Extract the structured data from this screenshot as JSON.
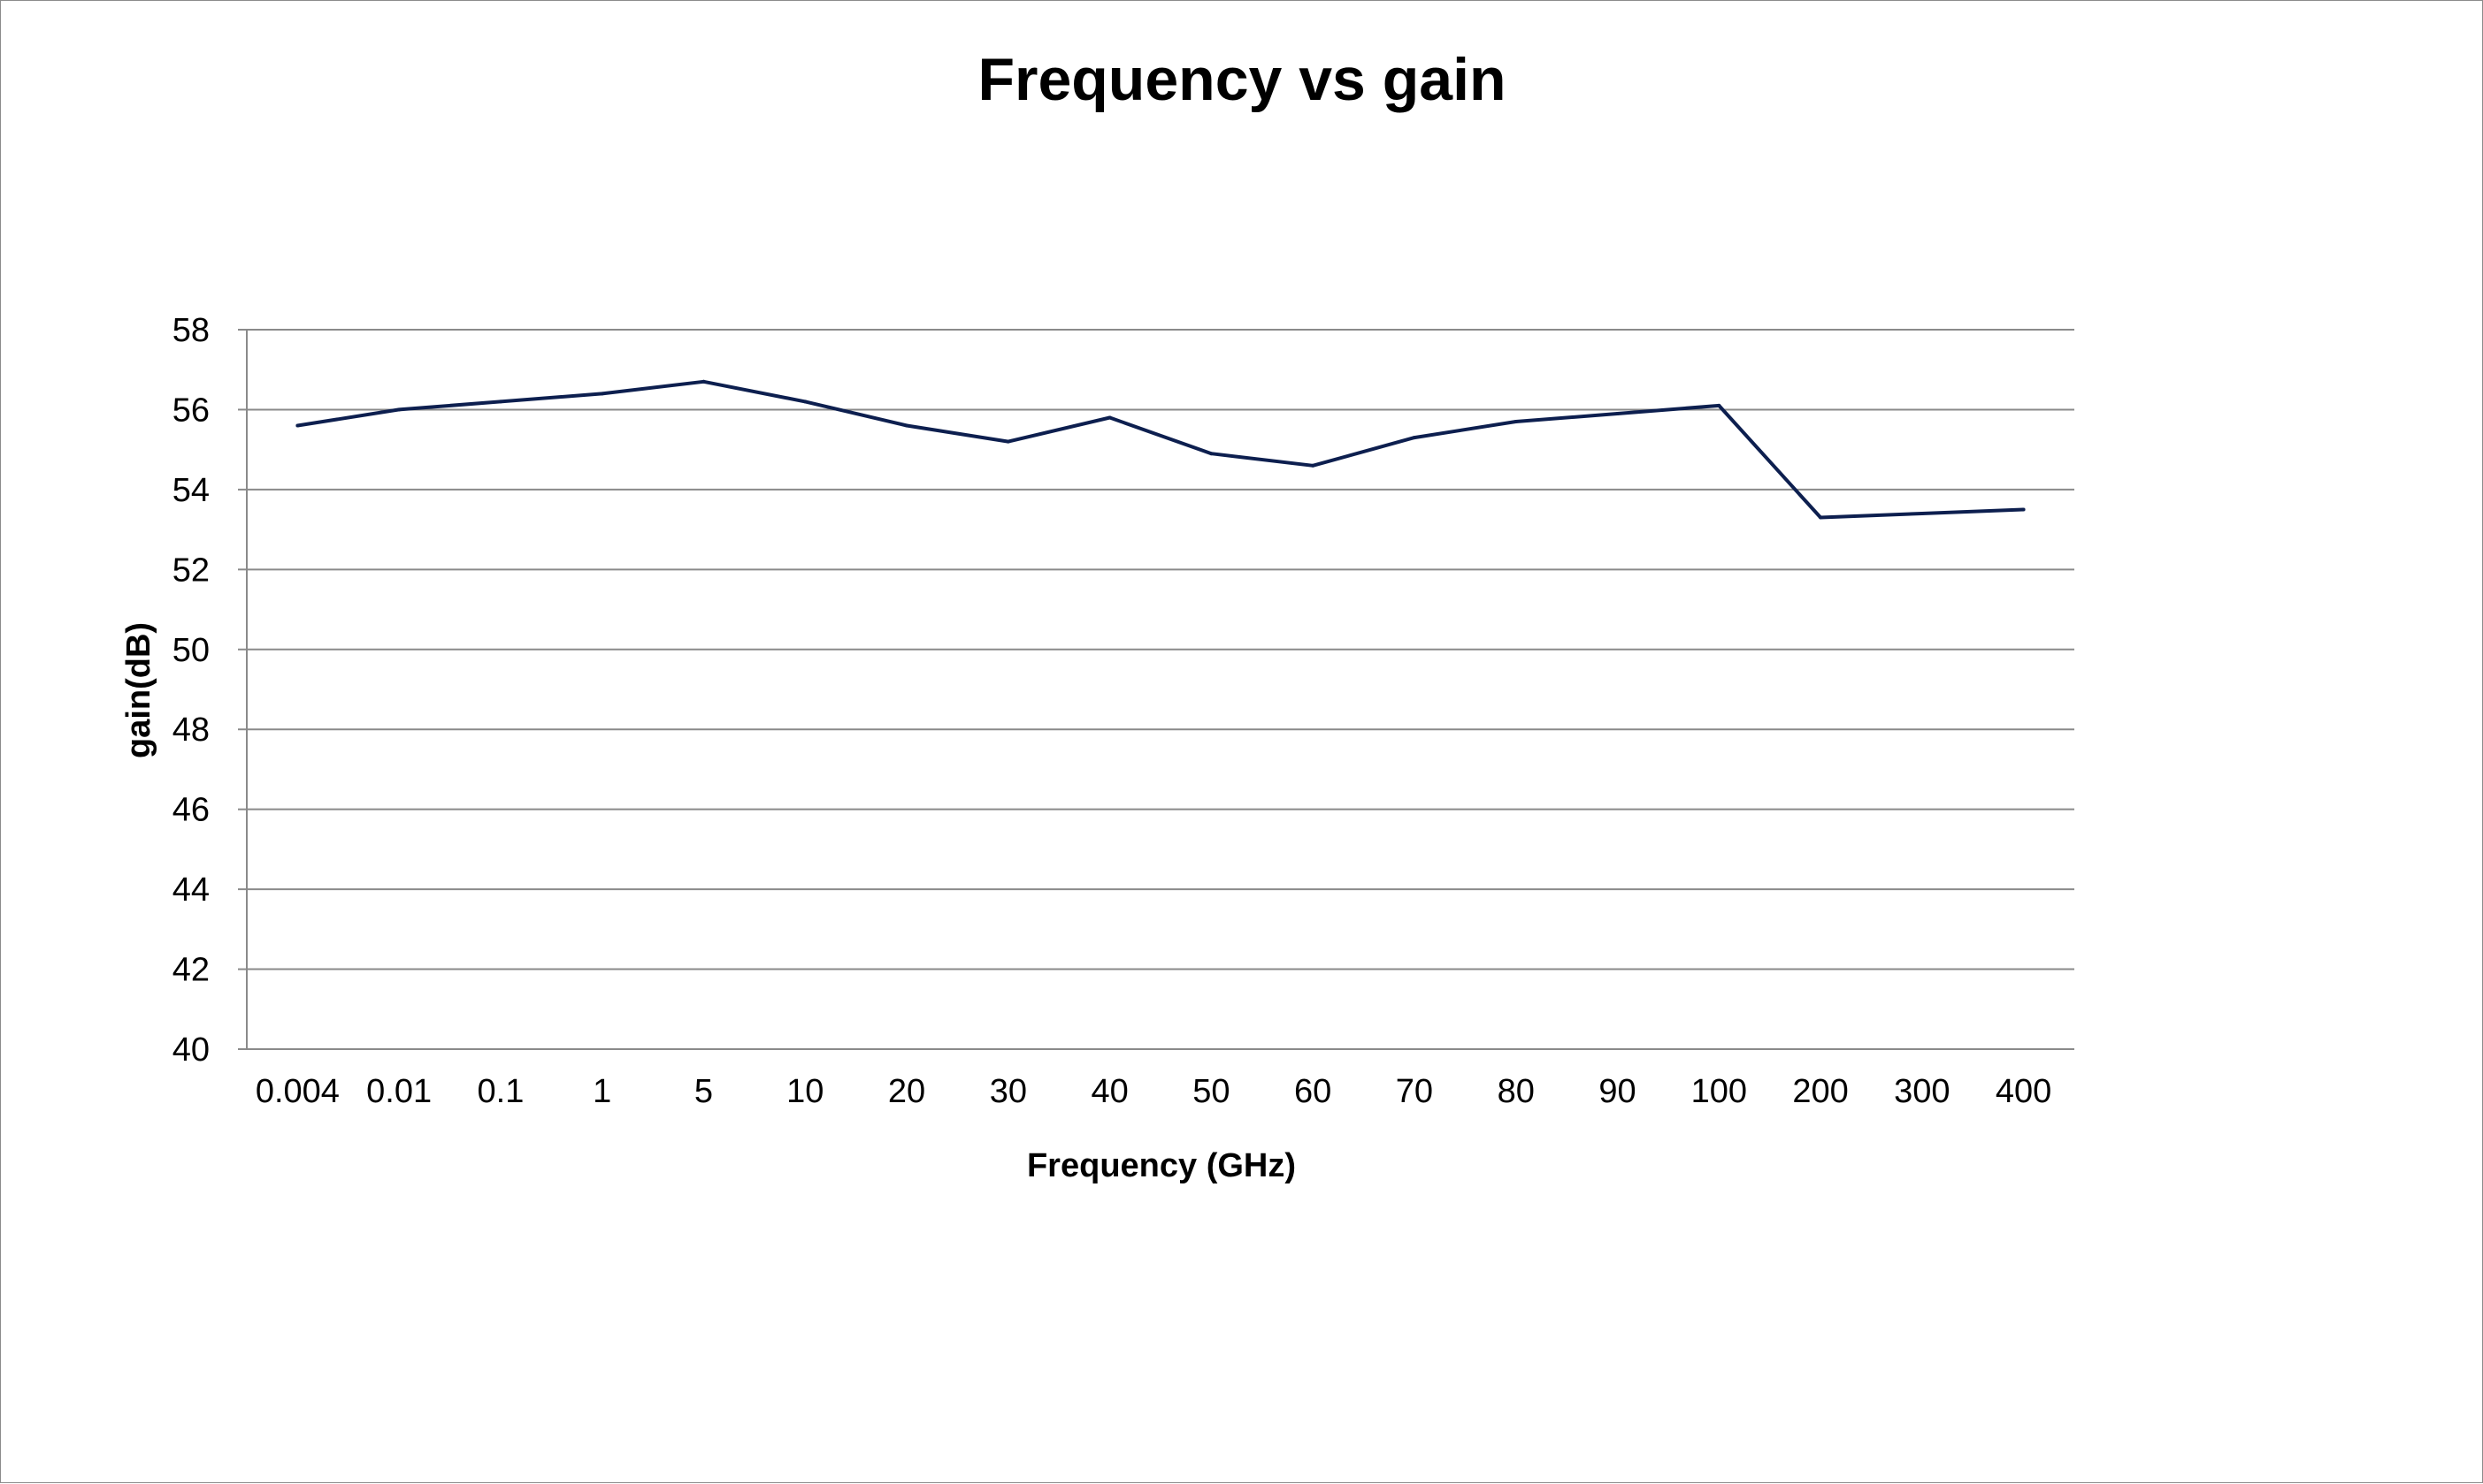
{
  "chart_data": {
    "type": "line",
    "title": "Frequency vs gain",
    "xlabel": "Frequency (GHz)",
    "ylabel": "gain(dB)",
    "categories": [
      "0.004",
      "0.01",
      "0.1",
      "1",
      "5",
      "10",
      "20",
      "30",
      "40",
      "50",
      "60",
      "70",
      "80",
      "90",
      "100",
      "200",
      "300",
      "400"
    ],
    "series": [
      {
        "values": [
          55.6,
          56.0,
          56.2,
          56.4,
          56.7,
          56.2,
          55.6,
          55.2,
          55.8,
          54.9,
          54.6,
          55.3,
          55.7,
          55.9,
          56.1,
          53.3,
          53.4,
          53.5
        ],
        "color": "#0d1f4f"
      }
    ],
    "ylim": [
      40,
      58
    ],
    "yticks": [
      40,
      42,
      44,
      46,
      48,
      50,
      52,
      54,
      56,
      58
    ],
    "grid": true,
    "legend": "none"
  }
}
